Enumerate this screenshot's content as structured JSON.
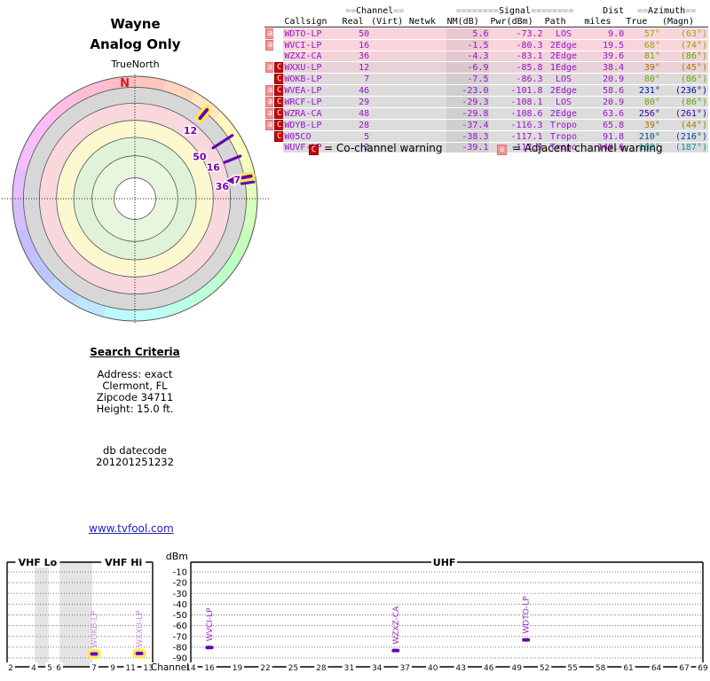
{
  "radar": {
    "title": "Wayne",
    "subtitle": "Analog Only",
    "orientation_label": "TrueNorth",
    "north_label": "N"
  },
  "table": {
    "channel_group": {
      "pre": "==",
      "label": "Channel",
      "post": "=="
    },
    "signal_group": {
      "pre": "========",
      "label": "Signal",
      "post": "========"
    },
    "dist_label": "Dist",
    "azimuth_group": {
      "pre": "==",
      "label": "Azimuth",
      "post": "=="
    },
    "columns": {
      "callsign": "Callsign",
      "real": "Real",
      "virt": "(Virt)",
      "netwk": "Netwk",
      "nm": "NM(dB)",
      "pwr": "Pwr(dBm)",
      "path": "Path",
      "miles": "miles",
      "true": "True",
      "magn": "(Magn)"
    },
    "rows": [
      {
        "warn_a": true,
        "warn_c": false,
        "callsign": "WDTO-LP",
        "real": "50",
        "virt": "",
        "netwk": "",
        "nm": "5.6",
        "pwr": "-73.2",
        "path": "LOS",
        "miles": "9.0",
        "az_true": "57°",
        "az_magn": "(63°)",
        "row_bg": "#f9d4db"
      },
      {
        "warn_a": true,
        "warn_c": false,
        "callsign": "WVCI-LP",
        "real": "16",
        "virt": "",
        "netwk": "",
        "nm": "-1.5",
        "pwr": "-80.3",
        "path": "2Edge",
        "miles": "19.5",
        "az_true": "68°",
        "az_magn": "(74°)",
        "row_bg": "#f9d4db"
      },
      {
        "warn_a": false,
        "warn_c": false,
        "callsign": "WZXZ-CA",
        "real": "36",
        "virt": "",
        "netwk": "",
        "nm": "-4.3",
        "pwr": "-83.1",
        "path": "2Edge",
        "miles": "39.6",
        "az_true": "81°",
        "az_magn": "(86°)",
        "row_bg": "#f2d3da"
      },
      {
        "warn_a": true,
        "warn_c": true,
        "callsign": "WXXU-LP",
        "real": "12",
        "virt": "",
        "netwk": "",
        "nm": "-6.9",
        "pwr": "-85.8",
        "path": "1Edge",
        "miles": "38.4",
        "az_true": "39°",
        "az_magn": "(45°)",
        "row_bg": "#e8d2d8"
      },
      {
        "warn_a": false,
        "warn_c": true,
        "callsign": "WOKB-LP",
        "real": "7",
        "virt": "",
        "netwk": "",
        "nm": "-7.5",
        "pwr": "-86.3",
        "path": "LOS",
        "miles": "20.9",
        "az_true": "80°",
        "az_magn": "(86°)",
        "row_bg": "#dfd9db"
      },
      {
        "warn_a": true,
        "warn_c": true,
        "callsign": "WVEA-LP",
        "real": "46",
        "virt": "",
        "netwk": "",
        "nm": "-23.0",
        "pwr": "-101.8",
        "path": "2Edge",
        "miles": "58.6",
        "az_true": "231°",
        "az_magn": "(236°)",
        "row_bg": "#dcdcdc"
      },
      {
        "warn_a": true,
        "warn_c": true,
        "callsign": "WRCF-LP",
        "real": "29",
        "virt": "",
        "netwk": "",
        "nm": "-29.3",
        "pwr": "-108.1",
        "path": "LOS",
        "miles": "20.9",
        "az_true": "80°",
        "az_magn": "(86°)",
        "row_bg": "#dcdcdc"
      },
      {
        "warn_a": true,
        "warn_c": true,
        "callsign": "WZRA-CA",
        "real": "48",
        "virt": "",
        "netwk": "",
        "nm": "-29.8",
        "pwr": "-108.6",
        "path": "2Edge",
        "miles": "63.6",
        "az_true": "256°",
        "az_magn": "(261°)",
        "row_bg": "#dcdcdc"
      },
      {
        "warn_a": true,
        "warn_c": true,
        "callsign": "WDYB-LP",
        "real": "28",
        "virt": "",
        "netwk": "",
        "nm": "-37.4",
        "pwr": "-116.3",
        "path": "Tropo",
        "miles": "65.8",
        "az_true": "39°",
        "az_magn": "(44°)",
        "row_bg": "#dcdcdc"
      },
      {
        "warn_a": false,
        "warn_c": true,
        "callsign": "W05CO",
        "real": "5",
        "virt": "",
        "netwk": "",
        "nm": "-38.3",
        "pwr": "-117.1",
        "path": "Tropo",
        "miles": "91.8",
        "az_true": "210°",
        "az_magn": "(216°)",
        "row_bg": "#dcdcdc"
      },
      {
        "warn_a": false,
        "warn_c": false,
        "callsign": "WUVF-LP",
        "real": "2",
        "virt": "",
        "netwk": "",
        "nm": "-39.1",
        "pwr": "-117.9",
        "path": "Tropo",
        "miles": "149.6",
        "az_true": "182°",
        "az_magn": "(187°)",
        "row_bg": "#dcdcdc"
      }
    ],
    "legend": {
      "c_badge": "C",
      "c_text": "= Co-channel warning",
      "a_badge": "a",
      "a_text": "= Adjacent channel warning"
    }
  },
  "search": {
    "heading": "Search Criteria",
    "lines": [
      "Address: exact",
      "Clermont, FL",
      "Zipcode 34711",
      "Height: 15.0 ft."
    ],
    "datecode_label": "db datecode",
    "datecode": "201201251232"
  },
  "link_text": "www.tvfool.com",
  "colors": {
    "station_purple": "#9911cc",
    "marker_purple": "#6600b0",
    "halo_yellow": "#ffe94d",
    "co_channel_red": "#cc0000",
    "adjacent_red": "#f29494",
    "north_red": "#cc2222",
    "link_blue": "#2222bb"
  },
  "chart_data": [
    {
      "type": "radar",
      "title": "Wayne",
      "subtitle": "Analog Only",
      "orientation": "TrueNorth",
      "rings_outer_to_inner": [
        {
          "r": 0.91,
          "fill": "#d7d7d7"
        },
        {
          "r": 0.78,
          "fill": "#f8d8dd"
        },
        {
          "r": 0.64,
          "fill": "#fbf8d0"
        },
        {
          "r": 0.5,
          "fill": "#e0f3d8"
        },
        {
          "r": 0.35,
          "fill": "#e8f6e0"
        },
        {
          "r": 0.17,
          "fill": "#ffffff"
        }
      ],
      "hue_band": {
        "inner_r": 0.91,
        "segments": 24,
        "sat": "100%",
        "light": "87%"
      },
      "markers": [
        {
          "label": "12",
          "azimuth_deg": 39,
          "r1": 0.82,
          "r2": 0.96,
          "thick": true,
          "halo": true,
          "label_r": 0.72
        },
        {
          "label": "50",
          "azimuth_deg": 57,
          "r1": 0.75,
          "r2": 0.96,
          "thick": false,
          "halo": false,
          "label_r": 0.63
        },
        {
          "label": "16",
          "azimuth_deg": 68,
          "r1": 0.78,
          "r2": 0.94,
          "thick": false,
          "halo": false,
          "label_r": 0.69
        },
        {
          "label": "36",
          "azimuth_deg": 82,
          "r1": 0.87,
          "r2": 0.99,
          "thick": false,
          "halo": false,
          "label_r": 0.72
        },
        {
          "label": "◀7",
          "azimuth_deg": 79,
          "r1": 0.87,
          "r2": 0.99,
          "thick": true,
          "halo": true,
          "label_r": 0.82
        }
      ]
    },
    {
      "type": "spectrum",
      "ylabel": "dBm",
      "xlabel": "Channel",
      "y_ticks": [
        -10,
        -20,
        -30,
        -40,
        -50,
        -60,
        -70,
        -80,
        -90
      ],
      "y_range": [
        0,
        -97.5
      ],
      "sections": [
        {
          "name": "VHF",
          "top_labels": [
            {
              "text": "VHF Lo",
              "pos": 0.21
            },
            {
              "text": "VHF Hi",
              "pos": 0.8
            }
          ],
          "ticks": [
            {
              "ch": "2",
              "pos": 0.024
            },
            {
              "ch": "4",
              "pos": 0.183
            },
            {
              "ch": "5",
              "pos": 0.293
            },
            {
              "ch": "6",
              "pos": 0.354
            },
            {
              "ch": "7",
              "pos": 0.598
            },
            {
              "ch": "9",
              "pos": 0.726
            },
            {
              "ch": "11",
              "pos": 0.848
            },
            {
              "ch": "13",
              "pos": 0.97
            }
          ],
          "shaded_bands": [
            [
              0.19,
              0.285
            ],
            [
              0.36,
              0.585
            ]
          ],
          "markers": [
            {
              "callsign": "WOKB-LP",
              "channel": 7,
              "pos": 0.598,
              "dbm": -86.3,
              "halo": true
            },
            {
              "callsign": "WXXU-LP",
              "channel": 12,
              "pos": 0.909,
              "dbm": -85.8,
              "halo": true
            }
          ]
        },
        {
          "name": "UHF",
          "top_labels": [
            {
              "text": "UHF",
              "pos": 0.495
            }
          ],
          "ticks": [
            {
              "ch": "14",
              "pos": 0.0
            },
            {
              "ch": "16",
              "pos": 0.0364
            },
            {
              "ch": "19",
              "pos": 0.0909
            },
            {
              "ch": "22",
              "pos": 0.1455
            },
            {
              "ch": "25",
              "pos": 0.2
            },
            {
              "ch": "28",
              "pos": 0.2545
            },
            {
              "ch": "31",
              "pos": 0.3091
            },
            {
              "ch": "34",
              "pos": 0.3636
            },
            {
              "ch": "37",
              "pos": 0.4182
            },
            {
              "ch": "40",
              "pos": 0.4727
            },
            {
              "ch": "43",
              "pos": 0.5273
            },
            {
              "ch": "46",
              "pos": 0.5818
            },
            {
              "ch": "49",
              "pos": 0.6364
            },
            {
              "ch": "52",
              "pos": 0.6909
            },
            {
              "ch": "55",
              "pos": 0.7455
            },
            {
              "ch": "58",
              "pos": 0.8
            },
            {
              "ch": "61",
              "pos": 0.8545
            },
            {
              "ch": "64",
              "pos": 0.9091
            },
            {
              "ch": "67",
              "pos": 0.9636
            },
            {
              "ch": "69",
              "pos": 1.0
            }
          ],
          "shaded_bands": [],
          "markers": [
            {
              "callsign": "WVCI-LP",
              "channel": 16,
              "pos": 0.0364,
              "dbm": -80.3,
              "halo": false
            },
            {
              "callsign": "WZXZ-CA",
              "channel": 36,
              "pos": 0.4,
              "dbm": -83.1,
              "halo": false
            },
            {
              "callsign": "WDTO-LP",
              "channel": 50,
              "pos": 0.6545,
              "dbm": -73.2,
              "halo": false
            }
          ]
        }
      ]
    }
  ]
}
